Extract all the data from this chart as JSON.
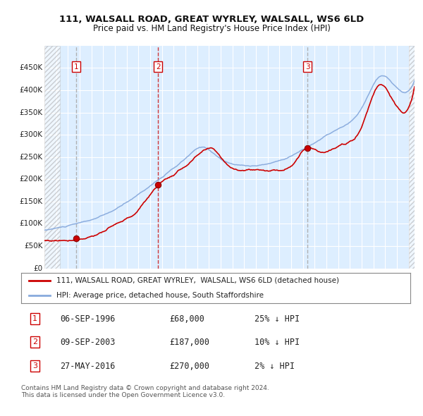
{
  "title1": "111, WALSALL ROAD, GREAT WYRLEY, WALSALL, WS6 6LD",
  "title2": "Price paid vs. HM Land Registry's House Price Index (HPI)",
  "hpi_color": "#88aadd",
  "price_color": "#cc0000",
  "bg_color": "#ddeeff",
  "transaction_dates": [
    1996.68,
    2003.68,
    2016.38
  ],
  "transaction_prices": [
    68000,
    187000,
    270000
  ],
  "transaction_labels": [
    "1",
    "2",
    "3"
  ],
  "legend_entries": [
    "111, WALSALL ROAD, GREAT WYRLEY,  WALSALL, WS6 6LD (detached house)",
    "HPI: Average price, detached house, South Staffordshire"
  ],
  "table_data": [
    [
      "1",
      "06-SEP-1996",
      "£68,000",
      "25% ↓ HPI"
    ],
    [
      "2",
      "09-SEP-2003",
      "£187,000",
      "10% ↓ HPI"
    ],
    [
      "3",
      "27-MAY-2016",
      "£270,000",
      "2% ↓ HPI"
    ]
  ],
  "footer": "Contains HM Land Registry data © Crown copyright and database right 2024.\nThis data is licensed under the Open Government Licence v3.0.",
  "xmin": 1994.0,
  "xmax": 2025.5,
  "ylim": [
    0,
    500000
  ],
  "yticks": [
    0,
    50000,
    100000,
    150000,
    200000,
    250000,
    300000,
    350000,
    400000,
    450000
  ],
  "ytick_labels": [
    "£0",
    "£50K",
    "£100K",
    "£150K",
    "£200K",
    "£250K",
    "£300K",
    "£350K",
    "£400K",
    "£450K"
  ]
}
